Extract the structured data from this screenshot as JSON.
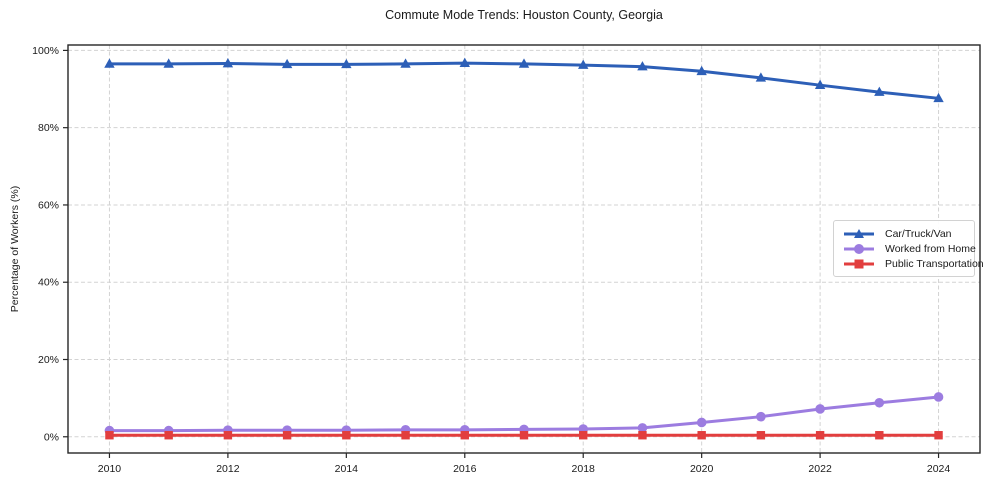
{
  "chart_data": {
    "type": "line",
    "title": "Commute Mode Trends: Houston County, Georgia",
    "xlabel": "",
    "ylabel": "Percentage of Workers (%)",
    "x": [
      2010,
      2011,
      2012,
      2013,
      2014,
      2015,
      2016,
      2017,
      2018,
      2019,
      2020,
      2021,
      2022,
      2023,
      2024
    ],
    "series": [
      {
        "name": "Car/Truck/Van",
        "color": "#2d5fb7",
        "marker": "triangle",
        "values": [
          96.5,
          96.5,
          96.6,
          96.4,
          96.4,
          96.5,
          96.7,
          96.5,
          96.2,
          95.8,
          94.6,
          92.9,
          91.0,
          89.2,
          87.6
        ]
      },
      {
        "name": "Worked from Home",
        "color": "#9c7ce0",
        "marker": "circle",
        "values": [
          1.6,
          1.6,
          1.7,
          1.7,
          1.7,
          1.8,
          1.8,
          1.9,
          2.0,
          2.3,
          3.7,
          5.2,
          7.2,
          8.8,
          10.3
        ]
      },
      {
        "name": "Public Transportation",
        "color": "#e23e3e",
        "marker": "square",
        "values": [
          0.4,
          0.4,
          0.4,
          0.4,
          0.4,
          0.4,
          0.4,
          0.4,
          0.4,
          0.4,
          0.4,
          0.4,
          0.4,
          0.4,
          0.4
        ]
      }
    ],
    "xticks": [
      2010,
      2012,
      2014,
      2016,
      2018,
      2020,
      2022,
      2024
    ],
    "yticks": [
      0,
      20,
      40,
      60,
      80,
      100
    ],
    "ytick_labels": [
      "0%",
      "20%",
      "40%",
      "60%",
      "80%",
      "100%"
    ],
    "xlim": [
      2009.3,
      2024.7
    ],
    "ylim": [
      -4.2,
      101.4
    ],
    "grid": true,
    "legend_position": "center-right",
    "grid_color": "#d3d3d3",
    "spine_color": "#262626",
    "tick_label_color": "#1a1a1a"
  }
}
